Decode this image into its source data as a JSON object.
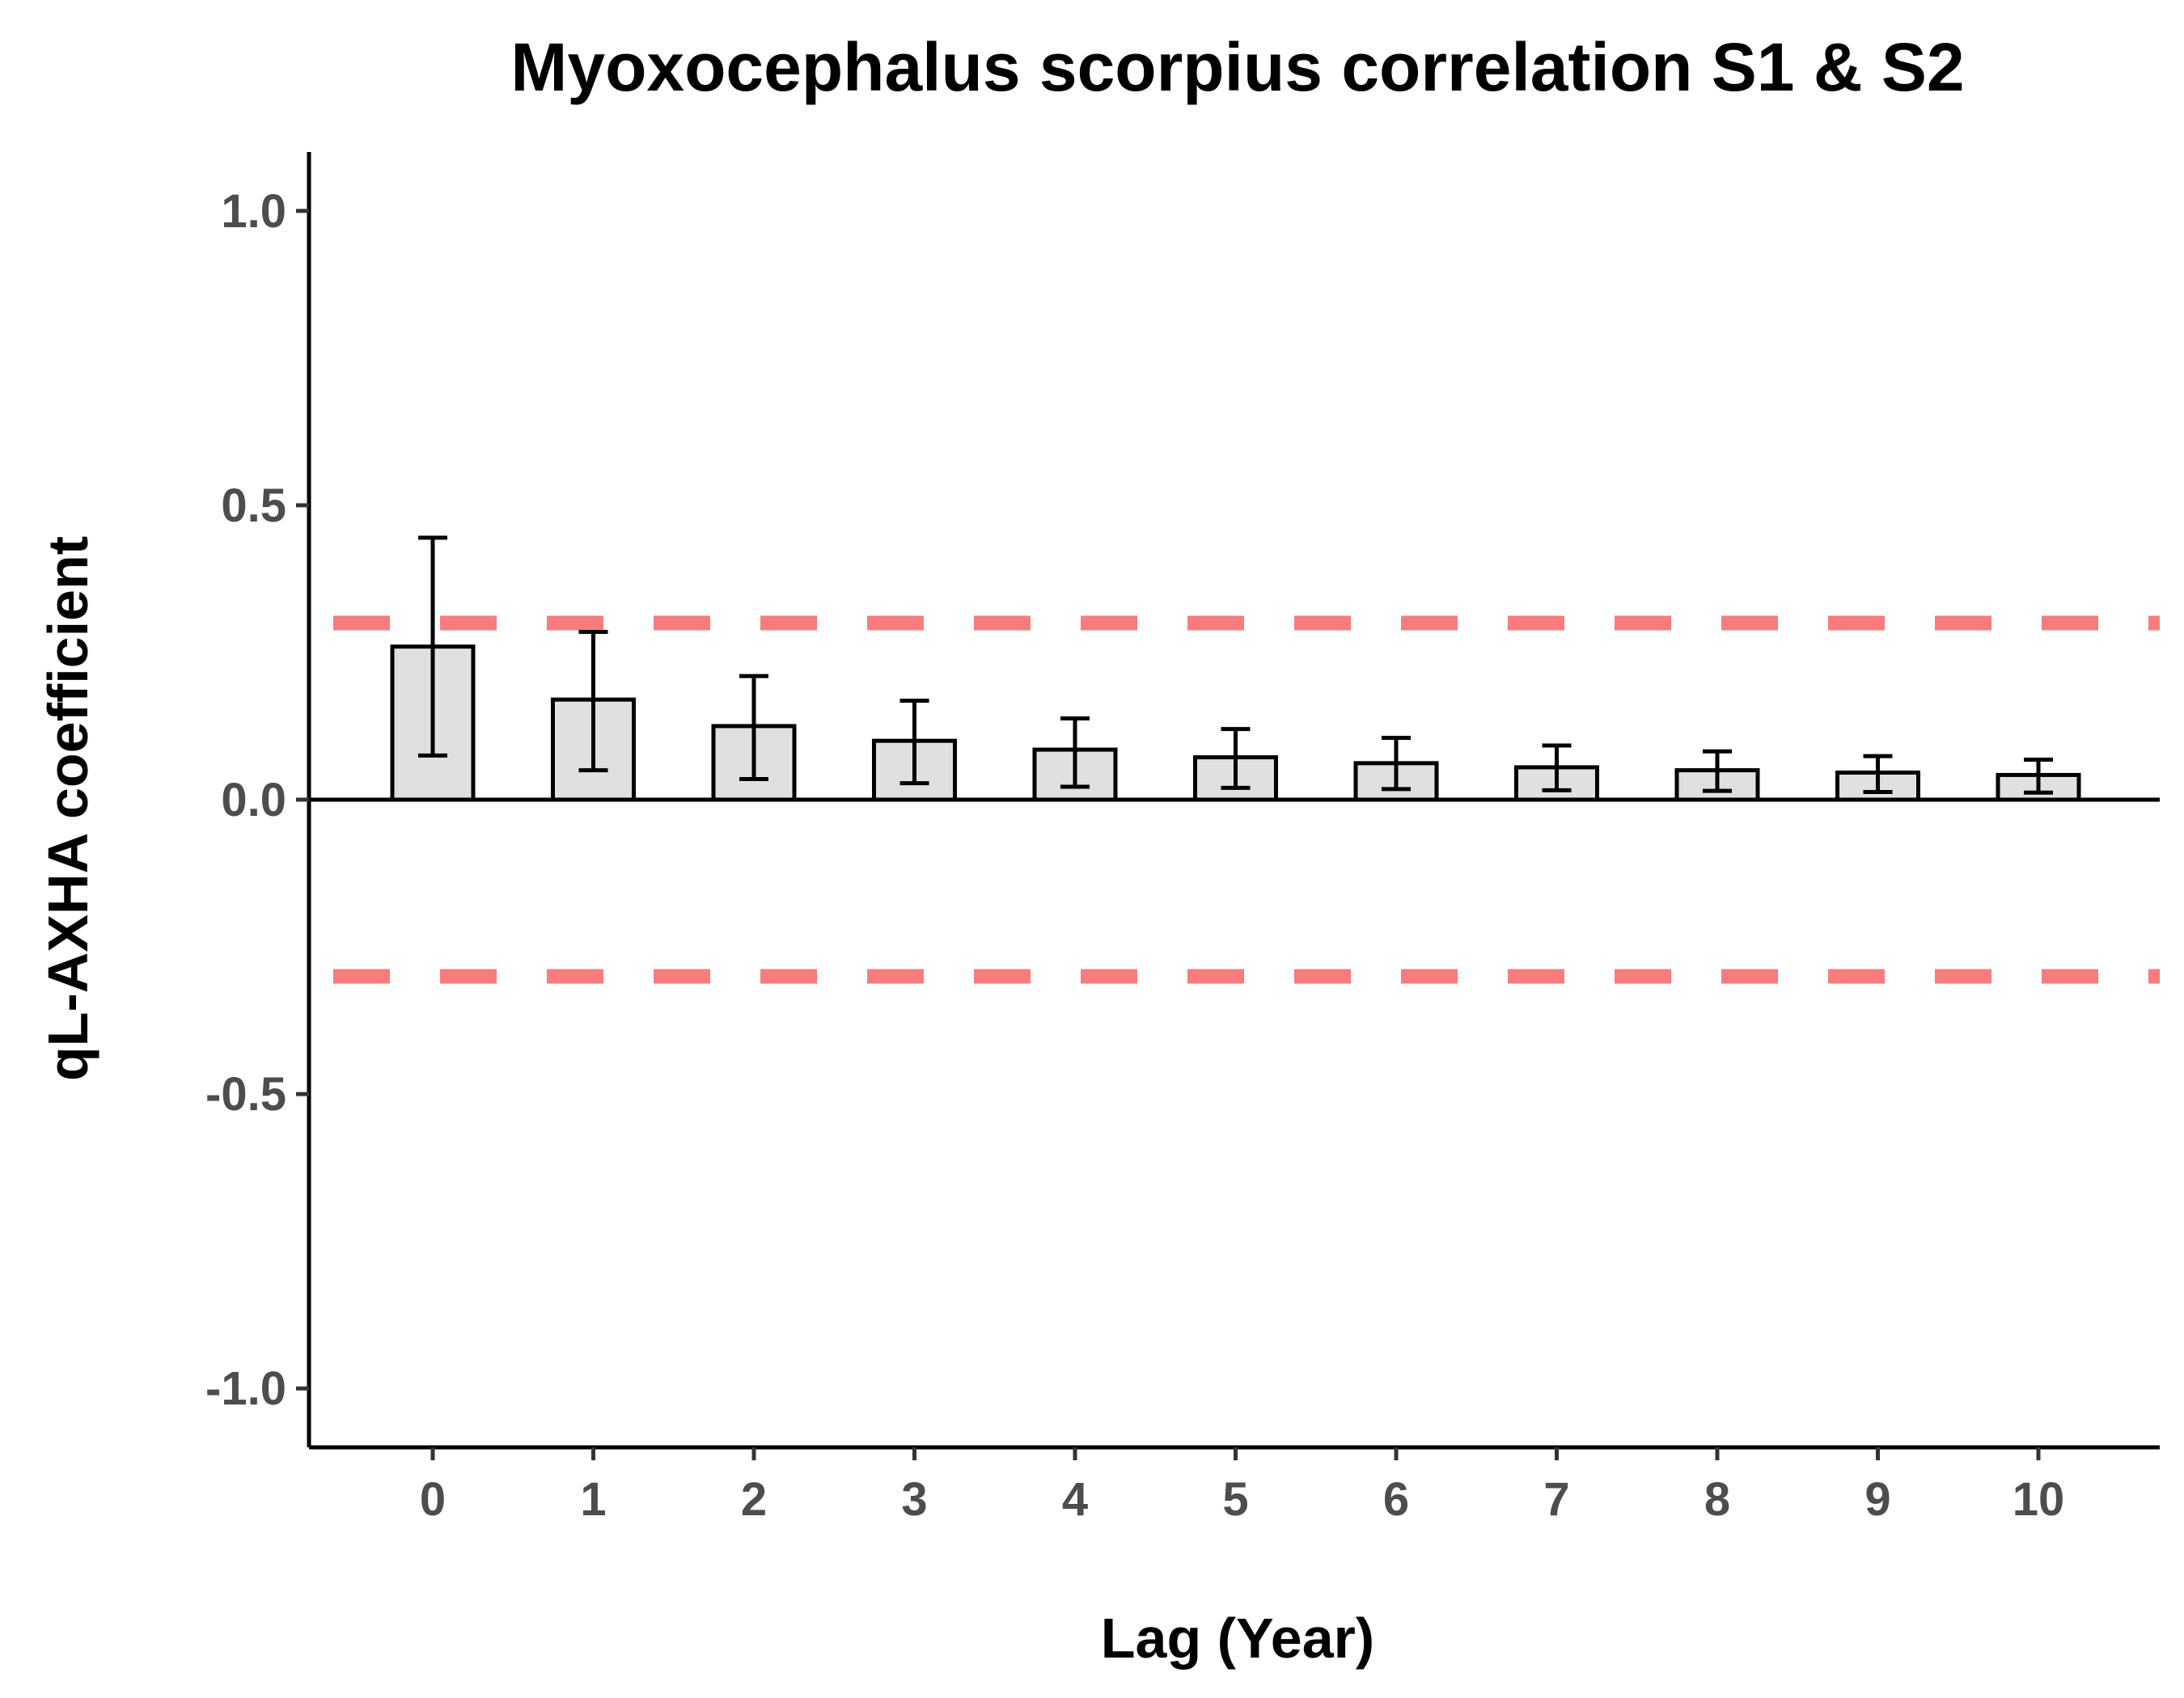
{
  "chart_data": {
    "type": "bar",
    "title": "Myoxocephalus scorpius correlation S1 & S2",
    "xlabel": "Lag (Year)",
    "ylabel": "qL-AXHA coefficient",
    "categories": [
      "0",
      "1",
      "2",
      "3",
      "4",
      "5",
      "6",
      "7",
      "8",
      "9",
      "10"
    ],
    "values": [
      0.26,
      0.17,
      0.125,
      0.1,
      0.085,
      0.072,
      0.062,
      0.055,
      0.05,
      0.046,
      0.042
    ],
    "error_lower": [
      0.075,
      0.05,
      0.035,
      0.028,
      0.022,
      0.02,
      0.018,
      0.016,
      0.015,
      0.013,
      0.012
    ],
    "error_upper": [
      0.445,
      0.285,
      0.21,
      0.168,
      0.138,
      0.12,
      0.105,
      0.092,
      0.082,
      0.074,
      0.068
    ],
    "ylim": [
      -1.1,
      1.1
    ],
    "yticks": [
      "-1.0",
      "-0.5",
      "0.0",
      "0.5",
      "1.0"
    ],
    "ytick_values": [
      -1.0,
      -0.5,
      0.0,
      0.5,
      1.0
    ],
    "reference_lines": [
      0.3,
      -0.3
    ],
    "grid": false,
    "colors": {
      "bar_fill": "#e0e0e0",
      "bar_stroke": "#000000",
      "reference_line": "#f87c7c",
      "tick_label": "#4d4d4d"
    }
  }
}
